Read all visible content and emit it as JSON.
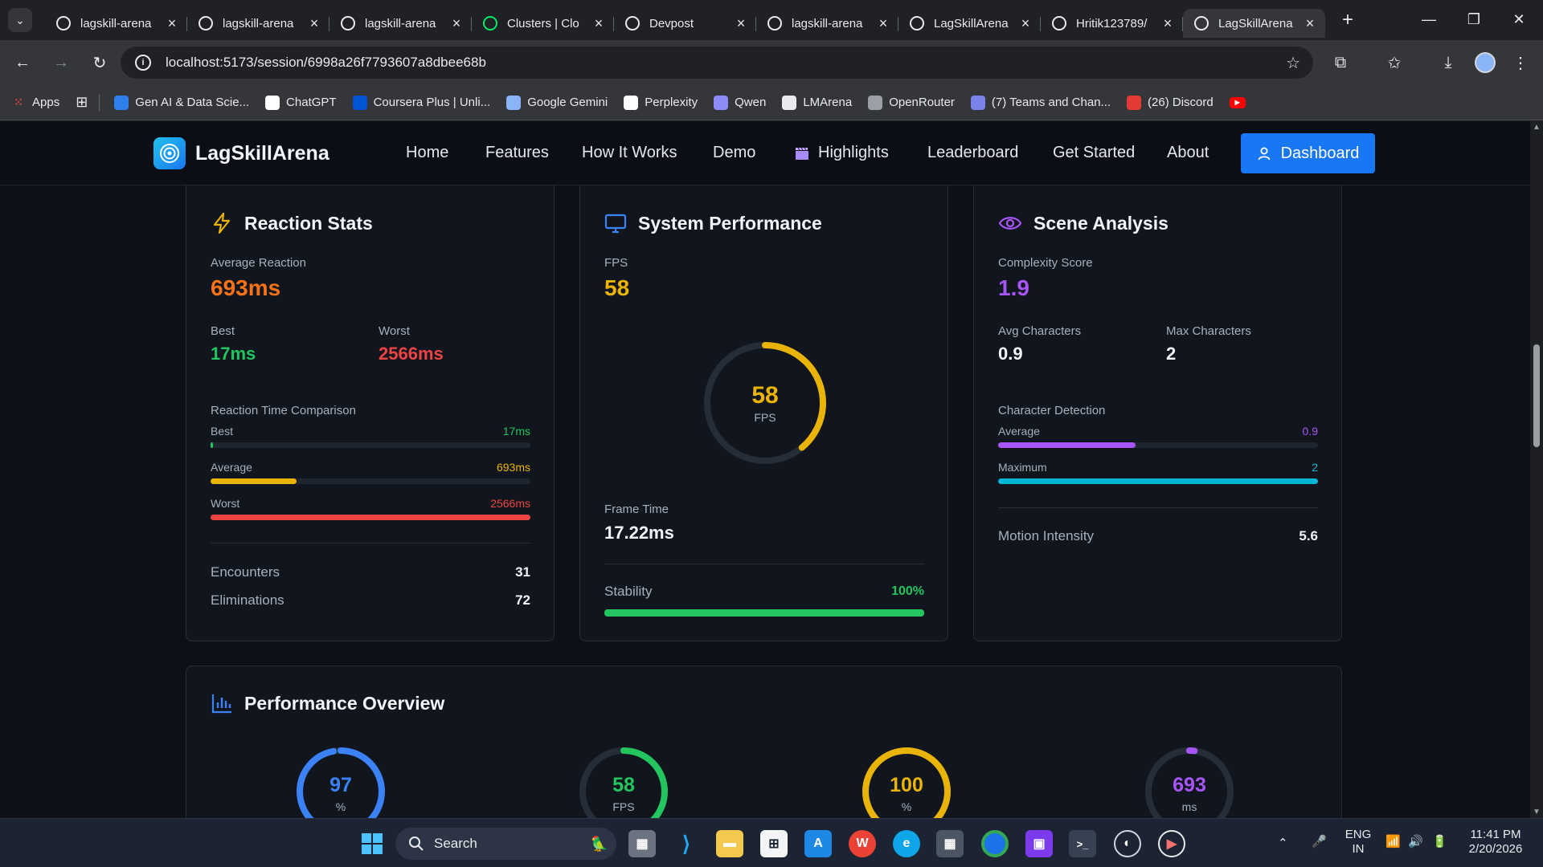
{
  "browser": {
    "tabs": [
      {
        "title": "lagskill-arena",
        "favicon": "lagskill-favicon",
        "color": "#e8eaed"
      },
      {
        "title": "lagskill-arena",
        "favicon": "globe-icon",
        "color": "#e8eaed"
      },
      {
        "title": "lagskill-arena",
        "favicon": "globe-icon",
        "color": "#e8eaed"
      },
      {
        "title": "Clusters | Clo",
        "favicon": "mongodb-leaf-icon",
        "color": "#00ed64"
      },
      {
        "title": "Devpost",
        "favicon": "devpost-icon",
        "color": "#e8eaed"
      },
      {
        "title": "lagskill-arena",
        "favicon": "vercel-triangle-icon",
        "color": "#e8eaed"
      },
      {
        "title": "LagSkillArena",
        "favicon": "globe-icon",
        "color": "#e8eaed"
      },
      {
        "title": "Hritik123789/",
        "favicon": "github-icon",
        "color": "#e8eaed"
      },
      {
        "title": "LagSkillArena",
        "favicon": "globe-icon",
        "color": "#e8eaed"
      }
    ],
    "active_tab_index": 8,
    "url": "localhost:5173/session/6998a26f7793607a8dbee68b",
    "bookmarks": [
      {
        "label": "Apps",
        "icon": "apps-grid-icon",
        "color": "#4285f4"
      },
      {
        "label": "Gen AI & Data Scie...",
        "icon": "gen-ai-icon",
        "color": "#2f80ed"
      },
      {
        "label": "ChatGPT",
        "icon": "chatgpt-icon",
        "color": "#ffffff"
      },
      {
        "label": "Coursera Plus | Unli...",
        "icon": "coursera-icon",
        "color": "#0056d2"
      },
      {
        "label": "Google Gemini",
        "icon": "gemini-icon",
        "color": "#8ab4f8"
      },
      {
        "label": "Perplexity",
        "icon": "perplexity-icon",
        "color": "#ffffff"
      },
      {
        "label": "Qwen",
        "icon": "qwen-icon",
        "color": "#8b8cf7"
      },
      {
        "label": "LMArena",
        "icon": "lmarena-icon",
        "color": "#e8eaed"
      },
      {
        "label": "OpenRouter",
        "icon": "openrouter-icon",
        "color": "#9aa0a6"
      },
      {
        "label": "(7) Teams and Chan...",
        "icon": "teams-icon",
        "color": "#7b83eb"
      },
      {
        "label": "(26) Discord",
        "icon": "discord-icon",
        "color": "#e53935"
      }
    ]
  },
  "app": {
    "brand": "LagSkillArena",
    "nav": [
      "Home",
      "Features",
      "How It Works",
      "Demo",
      "Highlights",
      "Leaderboard",
      "Get Started",
      "About"
    ],
    "dashboard_label": "Dashboard",
    "reaction": {
      "title": "Reaction Stats",
      "avg_label": "Average Reaction",
      "avg_value": "693ms",
      "best_label": "Best",
      "best_value": "17ms",
      "worst_label": "Worst",
      "worst_value": "2566ms",
      "comparison_label": "Reaction Time Comparison",
      "bars": [
        {
          "label": "Best",
          "value": "17ms",
          "fraction": 0.007,
          "color": "#22c55e"
        },
        {
          "label": "Average",
          "value": "693ms",
          "fraction": 0.27,
          "color": "#eab308"
        },
        {
          "label": "Worst",
          "value": "2566ms",
          "fraction": 1.0,
          "color": "#ef4444"
        }
      ],
      "encounters_label": "Encounters",
      "encounters_value": "31",
      "eliminations_label": "Eliminations",
      "eliminations_value": "72"
    },
    "system": {
      "title": "System Performance",
      "fps_label": "FPS",
      "fps_value": "58",
      "gauge_value": "58",
      "gauge_unit": "FPS",
      "gauge_fraction": 0.39,
      "frametime_label": "Frame Time",
      "frametime_value": "17.22ms",
      "stability_label": "Stability",
      "stability_value": "100%",
      "stability_fraction": 1.0
    },
    "scene": {
      "title": "Scene Analysis",
      "complexity_label": "Complexity Score",
      "complexity_value": "1.9",
      "avgchar_label": "Avg Characters",
      "avgchar_value": "0.9",
      "maxchar_label": "Max Characters",
      "maxchar_value": "2",
      "detection_label": "Character Detection",
      "bars": [
        {
          "label": "Average",
          "value": "0.9",
          "fraction": 0.43,
          "color": "#a855f7"
        },
        {
          "label": "Maximum",
          "value": "2",
          "fraction": 1.0,
          "color": "#06b6d4"
        }
      ],
      "motion_label": "Motion Intensity",
      "motion_value": "5.6"
    },
    "overview": {
      "title": "Performance Overview",
      "gauges": [
        {
          "value": "97",
          "unit": "%",
          "fraction": 0.97,
          "color": "#3b82f6"
        },
        {
          "value": "58",
          "unit": "FPS",
          "fraction": 0.39,
          "color": "#22c55e"
        },
        {
          "value": "100",
          "unit": "%",
          "fraction": 1.0,
          "color": "#eab308"
        },
        {
          "value": "693",
          "unit": "ms",
          "fraction": 0.02,
          "color": "#a855f7"
        }
      ]
    }
  },
  "taskbar": {
    "search_label": "Search",
    "lang_top": "ENG",
    "lang_bottom": "IN",
    "time": "11:41 PM",
    "date": "2/20/2026"
  }
}
